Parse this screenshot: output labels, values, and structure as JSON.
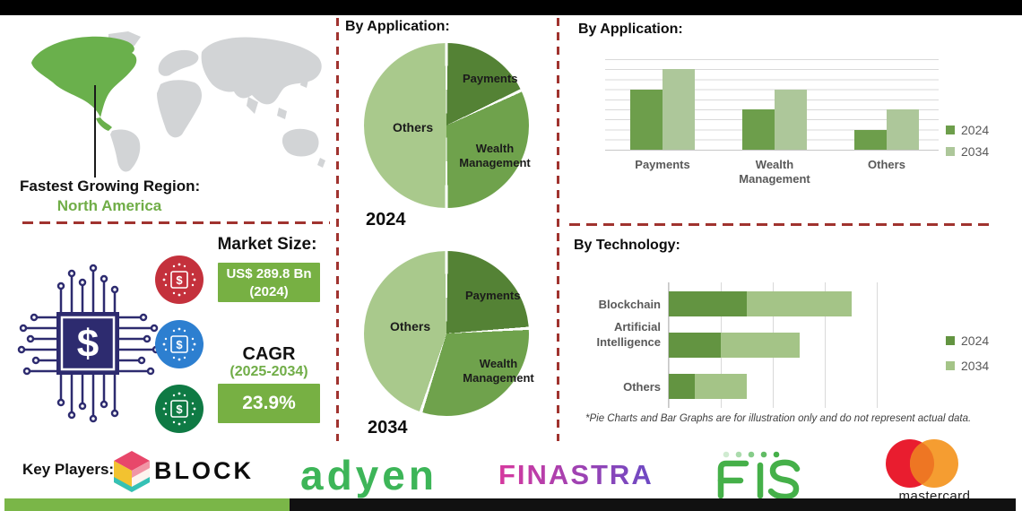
{
  "region": {
    "heading": "Fastest Growing Region:",
    "value": "North America"
  },
  "market": {
    "size_label": "Market Size:",
    "size_value": "US$ 289.8 Bn",
    "size_year": "(2024)",
    "cagr_label": "CAGR",
    "cagr_period": "(2025-2034)",
    "cagr_value": "23.9%"
  },
  "sections": {
    "pie_header": "By Application:",
    "app_bar_header": "By Application:",
    "tech_header": "By Technology:"
  },
  "footnote": "*Pie Charts and Bar Graphs are for illustration only and do not represent actual data.",
  "key_players": {
    "label": "Key Players:",
    "logos": {
      "block": "BLOCK",
      "adyen": "adyen",
      "finastra": "FINASTRA",
      "fis": "FIS",
      "mastercard": "mastercard"
    }
  },
  "colors": {
    "accent_green": "#77b043",
    "text_green": "#70ad47",
    "dash_red": "#a0332f",
    "map_green": "#6ab04c",
    "map_gray": "#d2d4d6",
    "circuit_navy": "#2d2b6f",
    "chip_red": "#c4313c",
    "chip_blue": "#2d7fd0",
    "chip_green": "#0f7a44",
    "adyen_green": "#3db558",
    "fis_green": "#45b049",
    "finastra_start": "#d6399f",
    "finastra_end": "#6b4ac4",
    "mastercard_red": "#e91d2f",
    "mastercard_orange": "#f59d31",
    "mastercard_overlap": "#ee7623",
    "bottom_bar_green": "#7ab648",
    "bottom_bar_black": "#111111"
  },
  "chart_data": [
    {
      "id": "pie-2024",
      "type": "pie",
      "title": "2024",
      "labels": [
        "Payments",
        "Wealth Management",
        "Others"
      ],
      "values": [
        18,
        32,
        50
      ],
      "colors": [
        "#548235",
        "#6fa24c",
        "#a9c98c"
      ],
      "legend_position": "none"
    },
    {
      "id": "pie-2034",
      "type": "pie",
      "title": "2034",
      "labels": [
        "Payments",
        "Wealth Management",
        "Others"
      ],
      "values": [
        24,
        31,
        45
      ],
      "colors": [
        "#548235",
        "#6fa24c",
        "#a9c98c"
      ],
      "legend_position": "none"
    },
    {
      "id": "by-application-bar",
      "type": "bar",
      "title": "By Application:",
      "categories": [
        "Payments",
        "Wealth Management",
        "Others"
      ],
      "series": [
        {
          "name": "2024",
          "color": "#6d9e4b",
          "values": [
            6,
            4,
            2
          ]
        },
        {
          "name": "2034",
          "color": "#adc79a",
          "values": [
            8,
            6,
            4
          ]
        }
      ],
      "ylim": [
        0,
        9
      ],
      "grid": true,
      "legend_position": "right"
    },
    {
      "id": "by-technology-bar",
      "type": "stacked-h-bar",
      "title": "By Technology:",
      "categories": [
        "Blockchain",
        "Artificial Intelligence",
        "Others"
      ],
      "series": [
        {
          "name": "2024",
          "color": "#639441",
          "values": [
            1.5,
            1,
            0.5
          ]
        },
        {
          "name": "2034",
          "color": "#a4c487",
          "values": [
            2,
            1.5,
            1
          ]
        }
      ],
      "xlim": [
        0,
        4
      ],
      "grid": true,
      "legend_position": "right"
    }
  ]
}
